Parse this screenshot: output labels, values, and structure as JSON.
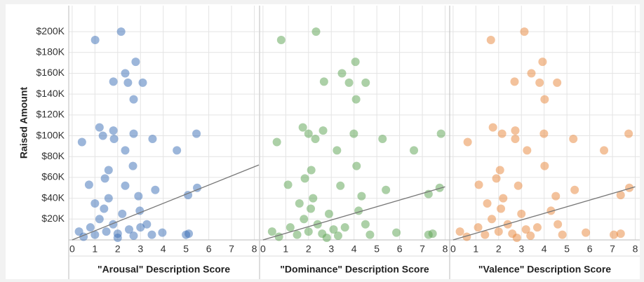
{
  "chart_data": [
    {
      "type": "scatter",
      "ylabel": "Raised Amount",
      "xlabel": "\"Arousal\" Description Score",
      "color": "#3a6db5",
      "x": [
        1.01,
        2.15,
        2.79,
        2.33,
        2.45,
        1.81,
        3.1,
        2.7,
        1.2,
        1.81,
        1.35,
        2.7,
        0.43,
        1.84,
        2.33,
        3.53,
        4.6,
        5.46,
        2.67,
        1.6,
        2.33,
        3.65,
        5.49,
        5.09,
        2.91,
        0.74,
        1.44,
        3.96,
        5.0,
        5.12,
        2.97,
        3.28,
        1.0,
        1.5,
        2.0,
        2.5,
        0.5,
        1.2,
        1.8,
        2.2,
        0.8,
        3.0,
        1.4,
        0.3,
        2.7,
        3.5,
        1.0,
        2.0,
        1.6
      ],
      "y": [
        192000,
        200000,
        171000,
        160000,
        151000,
        152000,
        151000,
        135000,
        108000,
        105000,
        100000,
        102000,
        94000,
        97000,
        86000,
        97000,
        86000,
        102000,
        71000,
        67000,
        52000,
        48000,
        50000,
        43000,
        42000,
        53000,
        59000,
        7000,
        5000,
        6000,
        28000,
        15000,
        5000,
        8000,
        6000,
        10000,
        3000,
        20000,
        15000,
        25000,
        12000,
        12000,
        30000,
        8000,
        4000,
        5000,
        35000,
        2000,
        40000
      ],
      "trendline": {
        "x": [
          0,
          8.2
        ],
        "y": [
          0,
          72000
        ]
      },
      "xlim": [
        -0.15,
        8.2
      ],
      "ylim": [
        0,
        225000
      ],
      "xticks": [
        0,
        1,
        2,
        3,
        4,
        5,
        6,
        7,
        8
      ],
      "yticks": [
        {
          "value": 20000,
          "label": "$20K"
        },
        {
          "value": 40000,
          "label": "$40K"
        },
        {
          "value": 60000,
          "label": "$60K"
        },
        {
          "value": 80000,
          "label": "$80K"
        },
        {
          "value": 100000,
          "label": "$100K"
        },
        {
          "value": 120000,
          "label": "$120K"
        },
        {
          "value": 140000,
          "label": "$140K"
        },
        {
          "value": 160000,
          "label": "$160K"
        },
        {
          "value": 180000,
          "label": "$180K"
        },
        {
          "value": 200000,
          "label": "$200K"
        }
      ],
      "grid": true
    },
    {
      "type": "scatter",
      "xlabel": "\"Dominance\" Description Score",
      "color": "#59a14f",
      "x": [
        0.8,
        2.33,
        4.06,
        3.47,
        3.78,
        2.68,
        4.51,
        4.09,
        1.75,
        2.0,
        2.64,
        2.3,
        0.61,
        3.99,
        3.25,
        5.25,
        6.63,
        7.82,
        4.11,
        2.12,
        3.4,
        5.4,
        7.76,
        7.27,
        4.33,
        1.1,
        1.84,
        5.86,
        7.27,
        7.45,
        4.2,
        4.5,
        1.5,
        2.0,
        2.6,
        3.1,
        0.7,
        1.8,
        2.4,
        2.9,
        1.2,
        3.6,
        2.1,
        0.4,
        3.3,
        4.7,
        1.6,
        2.8,
        2.2
      ],
      "y": [
        192000,
        200000,
        171000,
        160000,
        151000,
        152000,
        151000,
        135000,
        108000,
        102000,
        105000,
        97000,
        94000,
        102000,
        86000,
        97000,
        86000,
        102000,
        71000,
        67000,
        52000,
        48000,
        50000,
        44000,
        42000,
        53000,
        59000,
        7000,
        5000,
        6000,
        28000,
        15000,
        5000,
        8000,
        6000,
        10000,
        3000,
        20000,
        15000,
        25000,
        12000,
        12000,
        30000,
        8000,
        4000,
        5000,
        35000,
        2000,
        40000
      ],
      "trendline": {
        "x": [
          0,
          8
        ],
        "y": [
          0,
          51000
        ]
      },
      "xlim": [
        -0.15,
        8.2
      ],
      "ylim": [
        0,
        225000
      ],
      "xticks": [
        0,
        1,
        2,
        3,
        4,
        5,
        6,
        7,
        8
      ],
      "yticks": [
        20000,
        40000,
        60000,
        80000,
        100000,
        120000,
        140000,
        160000,
        180000,
        200000
      ],
      "grid": true
    },
    {
      "type": "scatter",
      "xlabel": "\"Valence\" Description Score",
      "color": "#e8853a",
      "x": [
        1.66,
        3.13,
        3.93,
        3.44,
        3.8,
        2.7,
        4.57,
        4.02,
        1.75,
        2.15,
        2.73,
        2.73,
        0.64,
        3.99,
        3.25,
        5.28,
        6.63,
        7.71,
        4.02,
        2.06,
        2.86,
        5.34,
        7.74,
        7.36,
        4.51,
        1.13,
        1.9,
        5.83,
        7.06,
        7.36,
        4.3,
        4.6,
        1.4,
        2.0,
        2.6,
        3.2,
        0.6,
        1.7,
        2.4,
        3.0,
        1.1,
        3.7,
        2.1,
        0.3,
        3.4,
        4.8,
        1.5,
        2.8,
        2.2
      ],
      "y": [
        192000,
        200000,
        171000,
        160000,
        151000,
        152000,
        151000,
        135000,
        108000,
        102000,
        105000,
        97000,
        94000,
        102000,
        86000,
        97000,
        86000,
        102000,
        71000,
        67000,
        52000,
        48000,
        50000,
        43000,
        42000,
        53000,
        59000,
        7000,
        5000,
        6000,
        28000,
        15000,
        5000,
        8000,
        6000,
        10000,
        3000,
        20000,
        15000,
        25000,
        12000,
        12000,
        30000,
        8000,
        4000,
        5000,
        35000,
        2000,
        40000
      ],
      "trendline": {
        "x": [
          0,
          8
        ],
        "y": [
          0,
          51000
        ]
      },
      "xlim": [
        -0.15,
        8.2
      ],
      "ylim": [
        0,
        225000
      ],
      "xticks": [
        0,
        1,
        2,
        3,
        4,
        5,
        6,
        7,
        8
      ],
      "yticks": [
        20000,
        40000,
        60000,
        80000,
        100000,
        120000,
        140000,
        160000,
        180000,
        200000
      ],
      "grid": true
    }
  ]
}
